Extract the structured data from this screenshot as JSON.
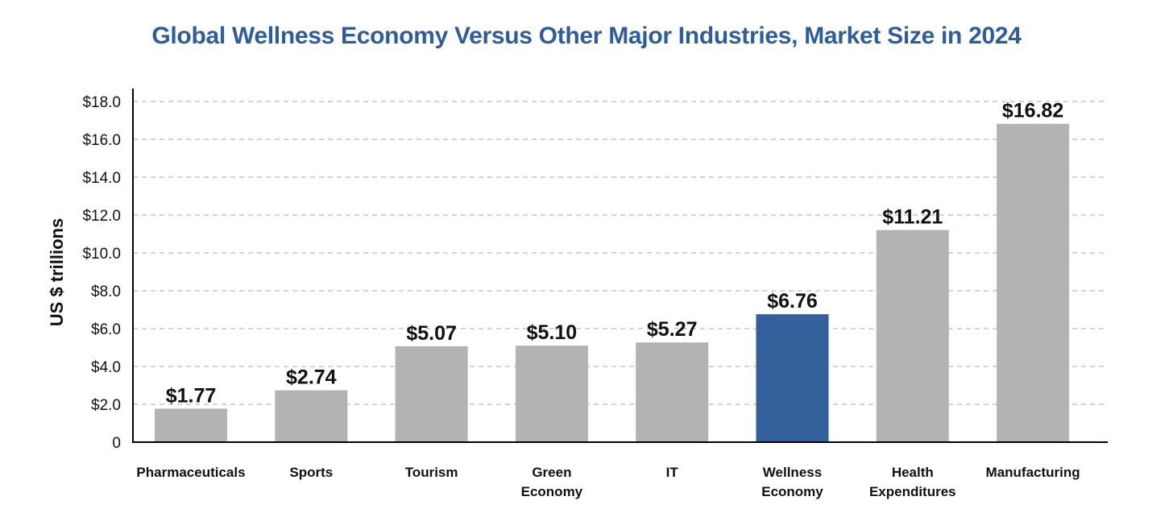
{
  "chart_data": {
    "type": "bar",
    "title": "Global Wellness Economy Versus Other Major Industries, Market Size in 2024",
    "xlabel": "",
    "ylabel": "US $ trillions",
    "ylim": [
      0,
      18
    ],
    "yticks": [
      0,
      2,
      4,
      6,
      8,
      10,
      12,
      14,
      16,
      18
    ],
    "ytick_labels": [
      "0",
      "$2.0",
      "$4.0",
      "$6.0",
      "$8.0",
      "$10.0",
      "$12.0",
      "$14.0",
      "$16.0",
      "$18.0"
    ],
    "grid": true,
    "categories": [
      [
        "Pharmaceuticals"
      ],
      [
        "Sports"
      ],
      [
        "Tourism"
      ],
      [
        "Green",
        "Economy"
      ],
      [
        "IT"
      ],
      [
        "Wellness",
        "Economy"
      ],
      [
        "Health",
        "Expenditures"
      ],
      [
        "Manufacturing"
      ]
    ],
    "values": [
      1.77,
      2.74,
      5.07,
      5.1,
      5.27,
      6.76,
      11.21,
      16.82
    ],
    "data_labels": [
      "$1.77",
      "$2.74",
      "$5.07",
      "$5.10",
      "$5.27",
      "$6.76",
      "$11.21",
      "$16.82"
    ],
    "highlight_index": 5,
    "colors": {
      "default": "#b3b3b3",
      "highlight": "#33609b",
      "title": "#2f5c9a"
    }
  }
}
